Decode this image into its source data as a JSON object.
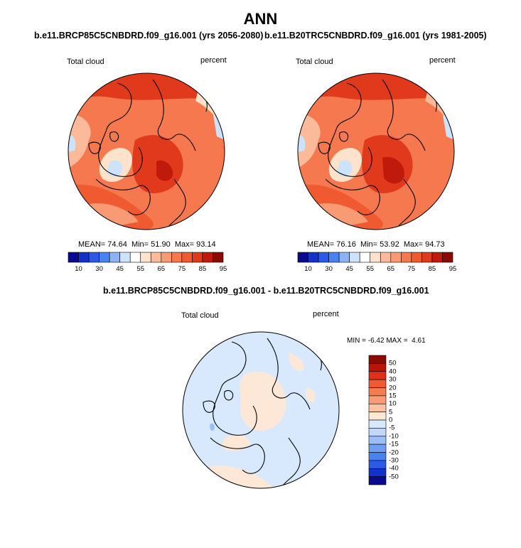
{
  "page": {
    "title": "ANN"
  },
  "colors": {
    "horizontal_scale": [
      "#0a0a8c",
      "#1432c8",
      "#2a5ae6",
      "#4a82f0",
      "#8cb4f5",
      "#cde2fb",
      "#ffffff",
      "#fde2cc",
      "#fbbb9a",
      "#f89a74",
      "#f5784f",
      "#f05a30",
      "#e1391c",
      "#c01a0c",
      "#8a0a04"
    ],
    "difference_scale": [
      "#0a0a8c",
      "#1432c8",
      "#2a5ae6",
      "#4a82f0",
      "#6e9df2",
      "#99bff6",
      "#c2d8f9",
      "#d8e9fd",
      "#fde8d8",
      "#fcc2a2",
      "#f99c76",
      "#f57b52",
      "#ef5a30",
      "#dc3318",
      "#b8150a",
      "#8a0a04"
    ],
    "land_outline": "#000000"
  },
  "panels": [
    {
      "title": "b.e11.BRCP85C5CNBDRD.f09_g16.001 (yrs 2056-2080)",
      "variable": "Total cloud",
      "units": "percent",
      "mean_label": "MEAN=",
      "mean": "74.64",
      "min_label": "Min=",
      "min": "51.90",
      "max_label": "Max=",
      "max": "93.14"
    },
    {
      "title": "b.e11.B20TRC5CNBDRD.f09_g16.001 (yrs 1981-2005)",
      "variable": "Total cloud",
      "units": "percent",
      "mean_label": "MEAN=",
      "mean": "76.16",
      "min_label": "Min=",
      "min": "53.92",
      "max_label": "Max=",
      "max": "94.73"
    },
    {
      "title": "b.e11.BRCP85C5CNBDRD.f09_g16.001 - b.e11.B20TRC5CNBDRD.f09_g16.001",
      "variable": "Total cloud",
      "units": "percent",
      "min_label": "MIN =",
      "min": "-6.42",
      "max_label": "MAX =",
      "max": "4.61"
    }
  ],
  "chart_data": [
    {
      "type": "heatmap",
      "projection": "north-polar-stereographic",
      "title": "b.e11.BRCP85C5CNBDRD.f09_g16.001 (yrs 2056-2080)",
      "variable": "Total cloud",
      "units": "percent",
      "mean": 74.64,
      "min": 51.9,
      "max": 93.14,
      "colorbar_ticks": [
        "10",
        "30",
        "45",
        "55",
        "65",
        "75",
        "85",
        "95"
      ]
    },
    {
      "type": "heatmap",
      "projection": "north-polar-stereographic",
      "title": "b.e11.B20TRC5CNBDRD.f09_g16.001 (yrs 1981-2005)",
      "variable": "Total cloud",
      "units": "percent",
      "mean": 76.16,
      "min": 53.92,
      "max": 94.73,
      "colorbar_ticks": [
        "10",
        "30",
        "45",
        "55",
        "65",
        "75",
        "85",
        "95"
      ]
    },
    {
      "type": "heatmap",
      "projection": "north-polar-stereographic",
      "title": "b.e11.BRCP85C5CNBDRD.f09_g16.001 - b.e11.B20TRC5CNBDRD.f09_g16.001",
      "variable": "Total cloud",
      "units": "percent",
      "min": -6.42,
      "max": 4.61,
      "colorbar_ticks": [
        "50",
        "40",
        "30",
        "20",
        "15",
        "10",
        "5",
        "0",
        "-5",
        "-10",
        "-15",
        "-20",
        "-30",
        "-40",
        "-50"
      ]
    }
  ]
}
